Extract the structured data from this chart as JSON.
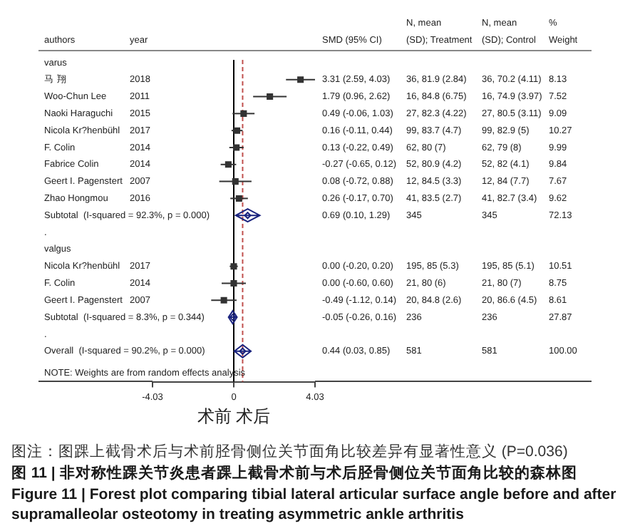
{
  "chart_data": {
    "type": "scatter",
    "orientation": "horizontal",
    "ylabel": "authors",
    "xlabel": "术前 术后",
    "categories": [
      "varus",
      "马 翔",
      "Woo-Chun Lee",
      "Naoki Haraguchi",
      "Nicola Kr?henbühl",
      "F. Colin",
      "Fabrice Colin",
      "Geert I. Pagenstert",
      "Zhao Hongmou",
      "Subtotal  (I-squared = 92.3%, p = 0.000)",
      ".",
      "valgus",
      "Nicola Kr?henbühl",
      "F. Colin",
      "Geert I. Pagenstert",
      "Subtotal  (I-squared = 8.3%, p = 0.344)",
      ".",
      "Overall  (I-squared = 90.2%, p = 0.000)"
    ],
    "series": [
      {
        "color": "#333333",
        "marker": "square",
        "values": [
          null,
          3.31,
          1.79,
          0.49,
          0.16,
          0.13,
          -0.27,
          0.08,
          0.26,
          null,
          null,
          null,
          0.0,
          0.0,
          -0.49,
          null,
          null,
          null
        ],
        "errors": [
          null,
          [
            2.59,
            4.03
          ],
          [
            0.96,
            2.62
          ],
          [
            -0.06,
            1.03
          ],
          [
            -0.11,
            0.44
          ],
          [
            -0.22,
            0.49
          ],
          [
            -0.65,
            0.12
          ],
          [
            -0.72,
            0.88
          ],
          [
            -0.17,
            0.7
          ],
          null,
          null,
          null,
          [
            -0.2,
            0.2
          ],
          [
            -0.6,
            0.6
          ],
          [
            -1.12,
            0.14
          ],
          null,
          null,
          null
        ],
        "value_labels": [
          null,
          "3.31 (2.59, 4.03)",
          "1.79 (0.96, 2.62)",
          "0.49 (-0.06, 1.03)",
          "0.16 (-0.11, 0.44)",
          "0.13 (-0.22, 0.49)",
          "-0.27 (-0.65, 0.12)",
          "0.08 (-0.72, 0.88)",
          "0.26 (-0.17, 0.70)",
          null,
          null,
          null,
          "0.00 (-0.20, 0.20)",
          "0.00 (-0.60, 0.60)",
          "-0.49 (-1.12, 0.14)",
          null,
          null,
          null
        ]
      },
      {
        "color": "#1a237e",
        "marker": "diamond",
        "values": [
          null,
          null,
          null,
          null,
          null,
          null,
          null,
          null,
          null,
          0.69,
          null,
          null,
          null,
          null,
          null,
          -0.05,
          null,
          0.44
        ],
        "errors": [
          null,
          null,
          null,
          null,
          null,
          null,
          null,
          null,
          null,
          [
            0.1,
            1.29
          ],
          null,
          null,
          null,
          null,
          null,
          [
            -0.26,
            0.16
          ],
          null,
          [
            0.03,
            0.85
          ]
        ]
      }
    ],
    "xlim": [
      -4.03,
      4.03
    ],
    "xticks": [
      -4.03,
      0,
      4.03
    ],
    "ref_lines": [
      {
        "axis": "x",
        "value": 0,
        "color": "#000000"
      },
      {
        "axis": "x",
        "value": 0.44,
        "color": "#c0504d",
        "line_style": "dashed"
      }
    ],
    "annotations": [
      "year",
      "SMD (95% CI)",
      "N, mean (SD); Treatment",
      "N, mean (SD); Control",
      "% Weight",
      "2018",
      "36, 81.9 (2.84)",
      "36, 70.2 (4.11)",
      "8.13",
      "2011",
      "16, 84.8 (6.75)",
      "16, 74.9 (3.97)",
      "7.52",
      "2015",
      "27, 82.3 (4.22)",
      "27, 80.5 (3.11)",
      "9.09",
      "2017",
      "99, 83.7 (4.7)",
      "99, 82.9 (5)",
      "10.27",
      "2014",
      "62, 80 (7)",
      "62, 79 (8)",
      "9.99",
      "2014",
      "52, 80.9 (4.2)",
      "52, 82 (4.1)",
      "9.84",
      "2007",
      "12, 84.5 (3.3)",
      "12, 84 (7.7)",
      "7.67",
      "2016",
      "41, 83.5 (2.7)",
      "41, 82.7 (3.4)",
      "9.62",
      "0.69 (0.10, 1.29)",
      "345",
      "345",
      "72.13",
      "2017",
      "195, 85 (5.3)",
      "195, 85 (5.1)",
      "10.51",
      "2014",
      "21, 80 (6)",
      "21, 80 (7)",
      "8.75",
      "2007",
      "20, 84.8 (2.6)",
      "20, 86.6 (4.5)",
      "8.61",
      "-0.05 (-0.26, 0.16)",
      "236",
      "236",
      "27.87",
      "0.44 (0.03, 0.85)",
      "581",
      "581",
      "100.00",
      "NOTE: Weights are from random effects analysis",
      "图注：图踝上截骨术后与术前胫骨侧位关节面角比较差异有显著性意义 (P=0.036)",
      "图 11 | 非对称性踝关节炎患者踝上截骨术前与术后胫骨侧位关节面角比较的森林图",
      "Figure 11 | Forest plot comparing tibial lateral articular surface angle before and after supramalleolar osteotomy in treating asymmetric ankle arthritis"
    ]
  }
}
